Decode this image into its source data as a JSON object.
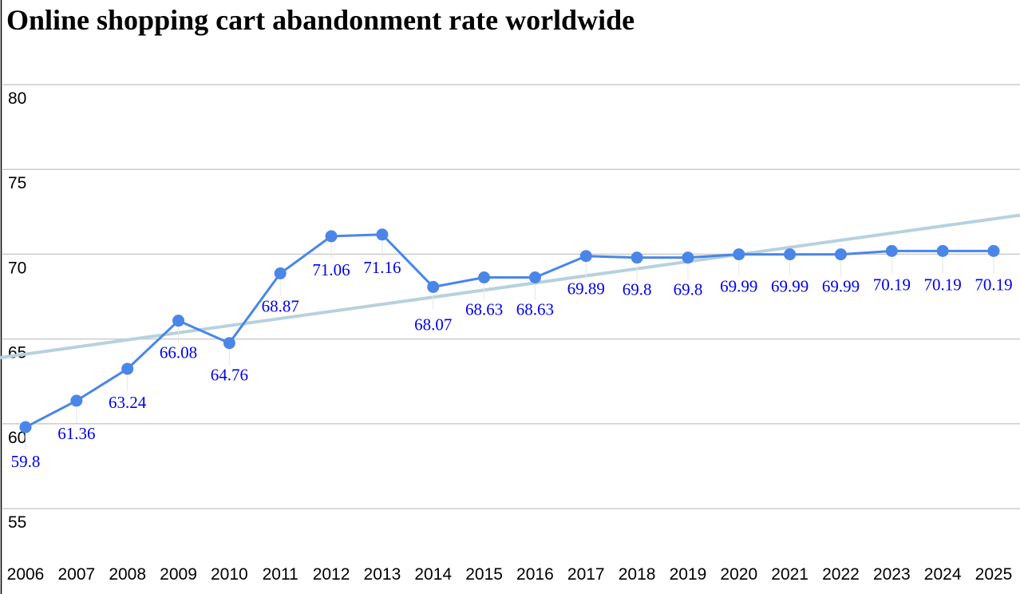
{
  "chart_data": {
    "type": "line",
    "title": "Online shopping cart abandonment rate worldwide",
    "xlabel": "",
    "ylabel": "",
    "categories": [
      "2006",
      "2007",
      "2008",
      "2009",
      "2010",
      "2011",
      "2012",
      "2013",
      "2014",
      "2015",
      "2016",
      "2017",
      "2018",
      "2019",
      "2020",
      "2021",
      "2022",
      "2023",
      "2024",
      "2025"
    ],
    "series": [
      {
        "values": [
          59.8,
          61.36,
          63.24,
          66.08,
          64.76,
          68.87,
          71.06,
          71.16,
          68.07,
          68.63,
          68.63,
          69.89,
          69.8,
          69.8,
          69.99,
          69.99,
          69.99,
          70.19,
          70.19,
          70.19
        ],
        "data_labels": [
          "59.8",
          "61.36",
          "63.24",
          "66.08",
          "64.76",
          "68.87",
          "71.06",
          "71.16",
          "68.07",
          "68.63",
          "68.63",
          "69.89",
          "69.8",
          "69.8",
          "69.99",
          "69.99",
          "69.99",
          "70.19",
          "70.19",
          "70.19"
        ]
      }
    ],
    "trendline": {
      "start": 63.9,
      "end": 72.3
    },
    "y_ticks": [
      "55",
      "60",
      "65",
      "70",
      "75",
      "80"
    ],
    "ylim": [
      52,
      82
    ],
    "grid": true,
    "legend": "none",
    "colors": {
      "line": "#4a86e8",
      "marker": "#4a86e8",
      "trendline": "#b7d1de",
      "data_label": "#0000ee",
      "gridline": "#cccccc",
      "axis": "#000000"
    }
  }
}
